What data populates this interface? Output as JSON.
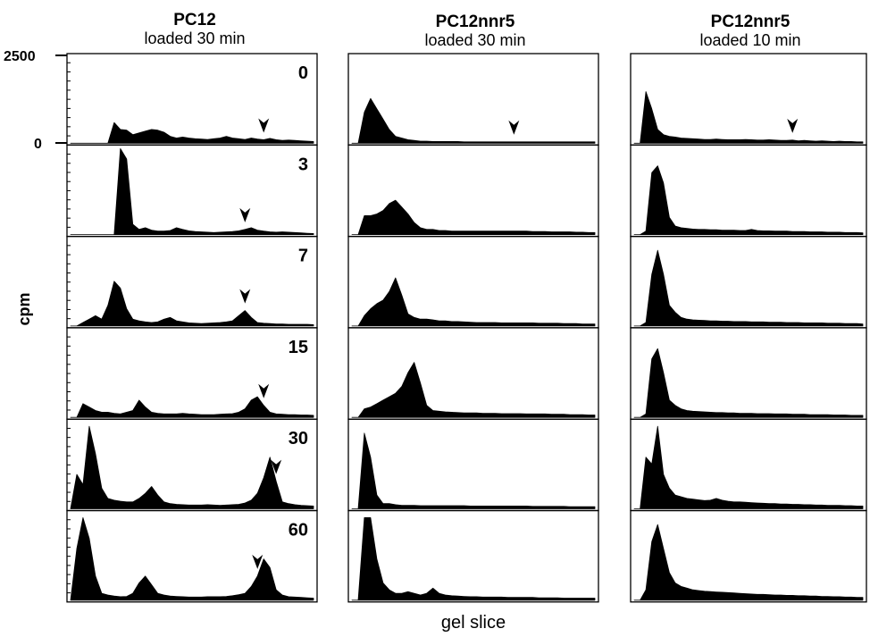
{
  "chart_data": {
    "type": "area",
    "ylabel": "cpm",
    "xlabel": "gel slice",
    "y_ticks": [
      "2500",
      "0"
    ],
    "ylim": [
      0,
      2500
    ],
    "x": [
      1,
      2,
      3,
      4,
      5,
      6,
      7,
      8,
      9,
      10,
      11,
      12,
      13,
      14,
      15,
      16,
      17,
      18,
      19,
      20,
      21,
      22,
      23,
      24,
      25,
      26,
      27,
      28,
      29,
      30,
      31,
      32,
      33,
      34,
      35,
      36,
      37,
      38,
      39,
      40
    ],
    "time_points": [
      "0",
      "3",
      "7",
      "15",
      "30",
      "60"
    ],
    "columns": [
      {
        "title": "PC12",
        "subtitle": "loaded 30 min",
        "panels": [
          {
            "time": "0",
            "arrow_slice": 32,
            "values": [
              0,
              0,
              0,
              0,
              0,
              0,
              0,
              600,
              400,
              380,
              250,
              300,
              350,
              400,
              380,
              320,
              200,
              150,
              180,
              150,
              130,
              120,
              110,
              130,
              150,
              200,
              150,
              130,
              110,
              150,
              120,
              100,
              140,
              100,
              80,
              90,
              80,
              70,
              60,
              50
            ]
          },
          {
            "time": "3",
            "arrow_slice": 29,
            "values": [
              0,
              0,
              0,
              0,
              0,
              0,
              0,
              0,
              2600,
              2200,
              300,
              150,
              200,
              130,
              100,
              100,
              120,
              200,
              150,
              110,
              90,
              80,
              70,
              60,
              70,
              80,
              90,
              110,
              150,
              200,
              130,
              100,
              80,
              70,
              80,
              70,
              60,
              50,
              40,
              30
            ]
          },
          {
            "time": "7",
            "arrow_slice": 29,
            "values": [
              0,
              0,
              100,
              200,
              300,
              200,
              600,
              1300,
              1100,
              500,
              200,
              150,
              120,
              100,
              120,
              200,
              250,
              150,
              120,
              90,
              80,
              70,
              80,
              90,
              100,
              120,
              150,
              300,
              450,
              250,
              100,
              80,
              70,
              60,
              60,
              50,
              50,
              50,
              50,
              40
            ]
          },
          {
            "time": "15",
            "arrow_slice": 32,
            "values": [
              0,
              0,
              400,
              300,
              200,
              150,
              150,
              120,
              100,
              150,
              200,
              500,
              300,
              150,
              120,
              100,
              100,
              100,
              120,
              100,
              90,
              80,
              80,
              80,
              90,
              100,
              110,
              150,
              250,
              500,
              600,
              350,
              150,
              100,
              90,
              80,
              80,
              70,
              70,
              60
            ]
          },
          {
            "time": "30",
            "arrow_slice": 34,
            "values": [
              0,
              1000,
              700,
              2400,
              1600,
              600,
              300,
              250,
              220,
              200,
              200,
              300,
              450,
              650,
              400,
              200,
              150,
              130,
              120,
              110,
              110,
              110,
              120,
              110,
              100,
              110,
              120,
              130,
              170,
              250,
              450,
              900,
              1500,
              800,
              200,
              150,
              120,
              100,
              90,
              80
            ]
          },
          {
            "time": "60",
            "arrow_slice": 31,
            "values": [
              0,
              1500,
              2400,
              1800,
              700,
              200,
              150,
              120,
              100,
              110,
              200,
              500,
              700,
              450,
              200,
              150,
              120,
              110,
              100,
              90,
              90,
              90,
              100,
              100,
              100,
              110,
              130,
              160,
              200,
              400,
              700,
              1200,
              950,
              300,
              150,
              100,
              90,
              80,
              70,
              60
            ]
          }
        ]
      },
      {
        "title": "PC12nnr5",
        "subtitle": "loaded 30 min",
        "panels": [
          {
            "time": "0",
            "arrow_slice": 27,
            "values": [
              0,
              0,
              900,
              1300,
              1000,
              700,
              400,
              200,
              150,
              100,
              80,
              60,
              60,
              50,
              50,
              50,
              50,
              50,
              40,
              40,
              40,
              40,
              40,
              40,
              40,
              40,
              40,
              40,
              40,
              40,
              40,
              40,
              40,
              40,
              40,
              40,
              40,
              40,
              40,
              40
            ]
          },
          {
            "time": "3",
            "arrow_slice": null,
            "values": [
              0,
              0,
              550,
              550,
              600,
              700,
              900,
              1000,
              800,
              600,
              350,
              200,
              150,
              150,
              120,
              120,
              100,
              100,
              100,
              100,
              100,
              100,
              100,
              100,
              100,
              100,
              100,
              100,
              100,
              90,
              90,
              90,
              80,
              80,
              80,
              80,
              70,
              70,
              60,
              60
            ]
          },
          {
            "time": "7",
            "arrow_slice": null,
            "values": [
              0,
              0,
              300,
              500,
              650,
              750,
              1000,
              1400,
              900,
              350,
              250,
              200,
              200,
              180,
              150,
              150,
              130,
              130,
              120,
              110,
              100,
              100,
              100,
              100,
              90,
              90,
              90,
              90,
              90,
              90,
              80,
              80,
              80,
              80,
              70,
              70,
              70,
              60,
              60,
              60
            ]
          },
          {
            "time": "15",
            "arrow_slice": null,
            "values": [
              0,
              0,
              250,
              300,
              400,
              500,
              600,
              700,
              900,
              1300,
              1600,
              1000,
              350,
              200,
              180,
              160,
              150,
              140,
              130,
              130,
              130,
              120,
              120,
              120,
              110,
              110,
              110,
              110,
              100,
              100,
              100,
              100,
              90,
              90,
              90,
              80,
              80,
              80,
              70,
              70
            ]
          },
          {
            "time": "30",
            "arrow_slice": null,
            "values": [
              0,
              0,
              2200,
              1500,
              400,
              150,
              150,
              120,
              100,
              100,
              100,
              90,
              90,
              90,
              90,
              90,
              90,
              90,
              90,
              80,
              80,
              80,
              80,
              80,
              80,
              80,
              80,
              80,
              80,
              70,
              70,
              70,
              70,
              70,
              70,
              60,
              60,
              60,
              60,
              60
            ]
          },
          {
            "time": "60",
            "arrow_slice": null,
            "values": [
              0,
              0,
              2400,
              2400,
              1200,
              500,
              300,
              200,
              200,
              250,
              200,
              150,
              200,
              350,
              200,
              150,
              130,
              120,
              110,
              100,
              100,
              90,
              90,
              90,
              90,
              80,
              80,
              80,
              80,
              80,
              70,
              70,
              70,
              70,
              60,
              60,
              60,
              60,
              60,
              60
            ]
          }
        ]
      },
      {
        "title": "PC12nnr5",
        "subtitle": "loaded 10 min",
        "panels": [
          {
            "time": "0",
            "arrow_slice": 28,
            "values": [
              0,
              0,
              1500,
              1000,
              400,
              250,
              200,
              180,
              150,
              140,
              130,
              120,
              110,
              110,
              120,
              110,
              100,
              100,
              100,
              110,
              100,
              90,
              90,
              100,
              90,
              80,
              80,
              90,
              70,
              80,
              70,
              60,
              70,
              60,
              50,
              60,
              50,
              50,
              40,
              40
            ]
          },
          {
            "time": "3",
            "arrow_slice": null,
            "values": [
              0,
              0,
              100,
              1800,
              2000,
              1500,
              500,
              250,
              200,
              180,
              160,
              150,
              150,
              140,
              140,
              130,
              130,
              130,
              120,
              120,
              150,
              120,
              110,
              110,
              100,
              100,
              100,
              90,
              90,
              90,
              80,
              80,
              80,
              70,
              70,
              70,
              60,
              60,
              60,
              50
            ]
          },
          {
            "time": "7",
            "arrow_slice": null,
            "values": [
              0,
              0,
              100,
              1500,
              2200,
              1500,
              600,
              400,
              250,
              200,
              180,
              170,
              160,
              150,
              150,
              140,
              140,
              130,
              130,
              130,
              120,
              120,
              120,
              110,
              110,
              110,
              100,
              100,
              100,
              90,
              90,
              90,
              90,
              80,
              80,
              80,
              70,
              70,
              70,
              60
            ]
          },
          {
            "time": "15",
            "arrow_slice": null,
            "values": [
              0,
              0,
              100,
              1700,
              2000,
              1300,
              500,
              350,
              250,
              200,
              180,
              170,
              160,
              150,
              140,
              140,
              130,
              130,
              120,
              120,
              120,
              110,
              110,
              110,
              100,
              100,
              100,
              90,
              90,
              90,
              80,
              80,
              80,
              80,
              70,
              70,
              70,
              60,
              60,
              60
            ]
          },
          {
            "time": "30",
            "arrow_slice": null,
            "values": [
              0,
              0,
              1500,
              1300,
              2400,
              1000,
              600,
              400,
              350,
              300,
              280,
              260,
              240,
              250,
              300,
              250,
              220,
              200,
              200,
              190,
              180,
              170,
              160,
              150,
              150,
              140,
              140,
              130,
              130,
              120,
              120,
              110,
              110,
              100,
              100,
              100,
              90,
              90,
              80,
              80
            ]
          },
          {
            "time": "60",
            "arrow_slice": null,
            "values": [
              0,
              0,
              300,
              1700,
              2200,
              1500,
              800,
              500,
              400,
              350,
              300,
              280,
              260,
              250,
              240,
              230,
              220,
              210,
              200,
              190,
              180,
              170,
              170,
              160,
              150,
              150,
              140,
              140,
              130,
              130,
              120,
              120,
              110,
              110,
              100,
              100,
              90,
              90,
              80,
              80
            ]
          }
        ]
      }
    ]
  }
}
